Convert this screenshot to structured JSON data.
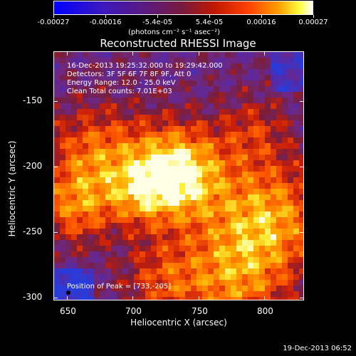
{
  "colorbar": {
    "tick_labels": [
      "-0.00027",
      "-0.00016",
      "-5.4e-05",
      "5.4e-05",
      "0.00016",
      "0.00027"
    ],
    "units": "(photons cm⁻² s⁻¹ asec⁻²)",
    "range": [
      -0.00027,
      0.00027
    ]
  },
  "image": {
    "title": "Reconstructed RHESSI Image",
    "info_lines": [
      "16-Dec-2013 19:25:32.000 to 19:29:42.000",
      "Detectors: 3F 5F 6F 7F 8F 9F, Att 0",
      "Energy Range: 12.0 - 25.0 keV",
      "Clean     Total counts: 7.01E+03"
    ],
    "peak_text": "Position of Peak = [733,-205]",
    "peak": {
      "x": 733,
      "y": -205
    }
  },
  "axes": {
    "xlabel": "Heliocentric X (arcsec)",
    "ylabel": "Heliocentric Y (arcsec)",
    "xlim": [
      640,
      830
    ],
    "ylim": [
      -302,
      -112
    ],
    "xticks": [
      650,
      700,
      750,
      800
    ],
    "yticks": [
      -150,
      -200,
      -250,
      -300
    ]
  },
  "footer": {
    "date": "19-Dec-2013 06:52"
  }
}
